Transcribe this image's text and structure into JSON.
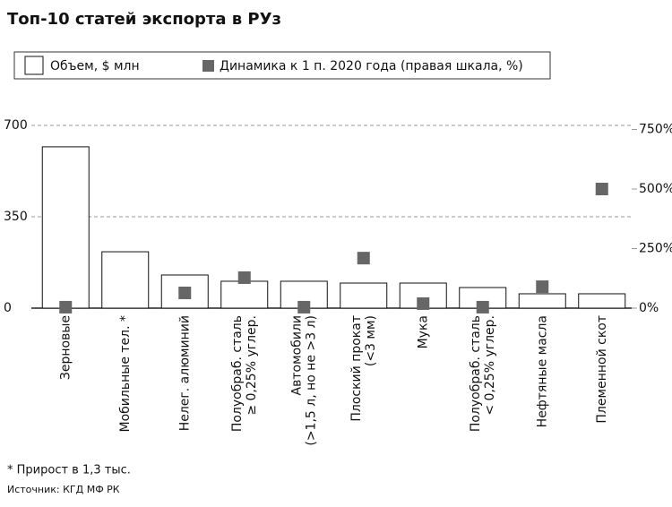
{
  "chart_data": {
    "type": "bar",
    "title": "Топ-10 статей экспорта в РУз",
    "categories": [
      "Зерновые",
      "Мобильные тел. *",
      "Нелег. алюминий",
      "Полуобраб. сталь\n≥ 0,25% углер.",
      "Автомобили\n(>1,5 л, но не >3 л)",
      "Плоский прокат\n(<3 мм)",
      "Мука",
      "Полуобраб. сталь\n< 0,25% углер.",
      "Нефтяные масла",
      "Племенной скот"
    ],
    "series": [
      {
        "name": "Объем, $ млн",
        "color": "#ffffff",
        "values": [
          618,
          216,
          127,
          103,
          103,
          96,
          96,
          79,
          55,
          55
        ]
      },
      {
        "name": "Динамика к 1 п. 2020 года (правая шкала, %)",
        "color": "#666666",
        "axis": "y2",
        "values": [
          4,
          null,
          64,
          128,
          4,
          210,
          19,
          4,
          90,
          500
        ]
      }
    ],
    "ylim": [
      0,
      700
    ],
    "yticks": [
      0,
      350,
      700
    ],
    "y2lim": [
      0,
      767
    ],
    "y2ticks": [
      {
        "value": 0,
        "label": "0%"
      },
      {
        "value": 250,
        "label": "250%"
      },
      {
        "value": 500,
        "label": "500%"
      },
      {
        "value": 750,
        "label": "750%"
      }
    ],
    "grid": true,
    "footnote": "* Прирост в 1,3 тыс.",
    "source": "Источник: КГД МФ РК"
  }
}
